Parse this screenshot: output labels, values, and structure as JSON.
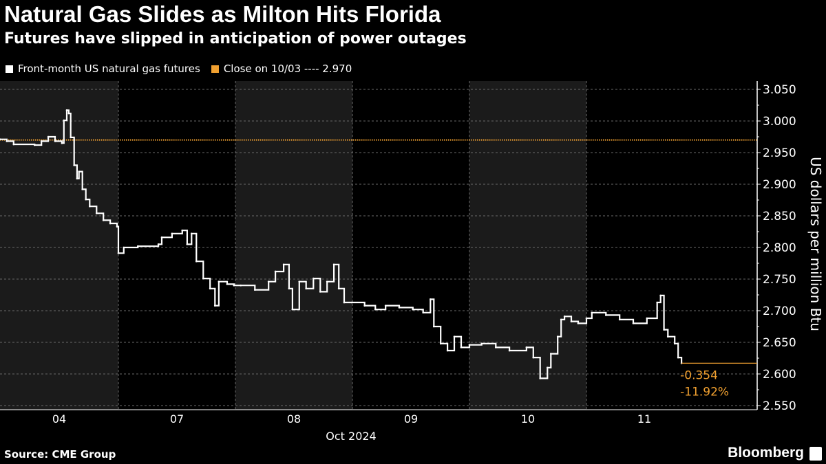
{
  "title": "Natural Gas Slides as Milton Hits Florida",
  "subtitle": "Futures have slipped in anticipation of power outages",
  "source": "Source: CME Group",
  "brand": "Bloomberg",
  "colors": {
    "series": "#ffffff",
    "close": "#f0a030",
    "band": "#1b1b1b",
    "grid": "#6a6a6a"
  },
  "chart_data": {
    "type": "line",
    "title": "Natural Gas Slides as Milton Hits Florida",
    "ylabel": "US dollars per million Btu",
    "xlabel": "Oct 2024",
    "ylim": [
      2.55,
      3.05
    ],
    "yticks": [
      "3.050",
      "3.000",
      "2.950",
      "2.900",
      "2.850",
      "2.800",
      "2.750",
      "2.700",
      "2.650",
      "2.600",
      "2.550"
    ],
    "grid": true,
    "legend_placement": "top-left",
    "legend": [
      "Front-month US natural gas futures",
      "Close on 10/03 ---- 2.970"
    ],
    "reference_line": {
      "name": "Close on 10/03",
      "value": 2.97
    },
    "annotation": {
      "change": "-0.354",
      "pct": "-11.92%"
    },
    "x_unit": "hour of trading day",
    "days": [
      {
        "label": "04",
        "shaded": true,
        "points": [
          [
            0,
            2.971
          ],
          [
            1.4,
            2.968
          ],
          [
            2.8,
            2.963
          ],
          [
            7.1,
            2.962
          ],
          [
            8.5,
            2.968
          ],
          [
            9.9,
            2.975
          ],
          [
            11.3,
            2.968
          ],
          [
            12.7,
            2.965
          ],
          [
            13.1,
            3.001
          ],
          [
            13.7,
            3.017
          ],
          [
            14.1,
            3.012
          ],
          [
            14.5,
            2.974
          ],
          [
            15.2,
            2.93
          ],
          [
            15.8,
            2.909
          ],
          [
            16.2,
            2.92
          ],
          [
            16.9,
            2.892
          ],
          [
            17.6,
            2.876
          ],
          [
            18.4,
            2.865
          ],
          [
            19.8,
            2.854
          ],
          [
            21.2,
            2.843
          ],
          [
            22.6,
            2.838
          ],
          [
            24,
            2.833
          ]
        ]
      },
      {
        "label": "07",
        "shaded": false,
        "points": [
          [
            0,
            2.791
          ],
          [
            1.1,
            2.8
          ],
          [
            4.0,
            2.802
          ],
          [
            8.2,
            2.805
          ],
          [
            8.9,
            2.816
          ],
          [
            11.0,
            2.822
          ],
          [
            13.1,
            2.827
          ],
          [
            14.1,
            2.805
          ],
          [
            15.0,
            2.822
          ],
          [
            16.0,
            2.778
          ],
          [
            17.4,
            2.751
          ],
          [
            18.8,
            2.735
          ],
          [
            19.8,
            2.708
          ],
          [
            20.6,
            2.746
          ],
          [
            22.3,
            2.742
          ],
          [
            23.7,
            2.74
          ]
        ]
      },
      {
        "label": "08",
        "shaded": true,
        "points": [
          [
            1.1,
            2.74
          ],
          [
            4.0,
            2.733
          ],
          [
            6.8,
            2.746
          ],
          [
            8.2,
            2.762
          ],
          [
            9.9,
            2.773
          ],
          [
            11.0,
            2.735
          ],
          [
            11.7,
            2.702
          ],
          [
            13.1,
            2.746
          ],
          [
            14.5,
            2.735
          ],
          [
            16.0,
            2.751
          ],
          [
            17.4,
            2.73
          ],
          [
            18.8,
            2.746
          ],
          [
            20.2,
            2.773
          ],
          [
            21.2,
            2.735
          ],
          [
            22.3,
            2.713
          ],
          [
            23.9,
            2.713
          ]
        ]
      },
      {
        "label": "09",
        "shaded": false,
        "points": [
          [
            2.5,
            2.708
          ],
          [
            4.7,
            2.702
          ],
          [
            6.8,
            2.708
          ],
          [
            9.6,
            2.705
          ],
          [
            12.4,
            2.702
          ],
          [
            14.5,
            2.697
          ],
          [
            16.0,
            2.718
          ],
          [
            16.7,
            2.675
          ],
          [
            18.1,
            2.648
          ],
          [
            19.5,
            2.637
          ],
          [
            20.9,
            2.659
          ],
          [
            22.3,
            2.642
          ],
          [
            24,
            2.646
          ]
        ]
      },
      {
        "label": "10",
        "shaded": true,
        "points": [
          [
            2.5,
            2.648
          ],
          [
            5.4,
            2.642
          ],
          [
            8.2,
            2.637
          ],
          [
            11.7,
            2.642
          ],
          [
            13.1,
            2.626
          ],
          [
            14.5,
            2.593
          ],
          [
            16.0,
            2.61
          ],
          [
            16.7,
            2.632
          ],
          [
            18.1,
            2.659
          ],
          [
            18.8,
            2.686
          ],
          [
            19.5,
            2.691
          ],
          [
            20.9,
            2.683
          ],
          [
            22.3,
            2.68
          ],
          [
            24,
            2.688
          ]
        ]
      },
      {
        "label": "11",
        "shaded": false,
        "points": [
          [
            1.1,
            2.697
          ],
          [
            4.0,
            2.693
          ],
          [
            6.8,
            2.686
          ],
          [
            9.6,
            2.68
          ],
          [
            12.4,
            2.688
          ],
          [
            14.5,
            2.713
          ],
          [
            15.2,
            2.724
          ],
          [
            15.9,
            2.67
          ],
          [
            16.7,
            2.659
          ],
          [
            18.1,
            2.648
          ],
          [
            18.8,
            2.626
          ],
          [
            19.5,
            2.617
          ]
        ]
      }
    ]
  }
}
